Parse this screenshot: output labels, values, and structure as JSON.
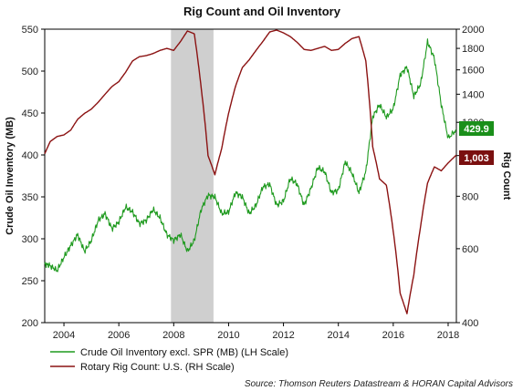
{
  "chart_data": {
    "type": "line",
    "title": "Rig Count and Oil Inventory",
    "ylabel_left": "Crude Oil Inventory (MB)",
    "ylabel_right": "Rig Count",
    "source": "Source: Thomson Reuters Datastream & HORAN Capital Advisors",
    "x_range": [
      2003.3,
      2018.3
    ],
    "x_ticks": [
      "2004",
      "2006",
      "2008",
      "2010",
      "2012",
      "2014",
      "2016",
      "2018"
    ],
    "y_left": {
      "min": 200,
      "max": 550,
      "ticks": [
        "200",
        "250",
        "300",
        "350",
        "400",
        "450",
        "500",
        "550"
      ]
    },
    "y_right": {
      "min": 400,
      "max": 2000,
      "scale": "log",
      "ticks": [
        "400",
        "600",
        "800",
        "1000",
        "1200",
        "1400",
        "1600",
        "1800",
        "2000"
      ]
    },
    "recession_shading": [
      2007.9,
      2009.45
    ],
    "grid": false,
    "legend_position": "bottom-left",
    "series": [
      {
        "name": "Crude Oil Inventory excl. SPR (MB) (LH Scale)",
        "axis": "left",
        "color": "#1f9a1f",
        "last_value_label": "429.9",
        "x": [
          2003.3,
          2003.5,
          2003.75,
          2004.0,
          2004.25,
          2004.5,
          2004.75,
          2005.0,
          2005.25,
          2005.5,
          2005.75,
          2006.0,
          2006.25,
          2006.5,
          2006.75,
          2007.0,
          2007.25,
          2007.5,
          2007.75,
          2008.0,
          2008.25,
          2008.5,
          2008.75,
          2009.0,
          2009.25,
          2009.5,
          2009.75,
          2010.0,
          2010.25,
          2010.5,
          2010.75,
          2011.0,
          2011.25,
          2011.5,
          2011.75,
          2012.0,
          2012.25,
          2012.5,
          2012.75,
          2013.0,
          2013.25,
          2013.5,
          2013.75,
          2014.0,
          2014.25,
          2014.5,
          2014.75,
          2015.0,
          2015.25,
          2015.5,
          2015.75,
          2016.0,
          2016.25,
          2016.5,
          2016.75,
          2017.0,
          2017.25,
          2017.5,
          2017.75,
          2018.0,
          2018.3
        ],
        "values": [
          270,
          268,
          262,
          278,
          292,
          305,
          285,
          298,
          322,
          330,
          312,
          320,
          338,
          332,
          318,
          322,
          335,
          325,
          305,
          298,
          305,
          285,
          298,
          335,
          352,
          350,
          330,
          332,
          355,
          350,
          330,
          340,
          362,
          365,
          340,
          345,
          372,
          365,
          340,
          360,
          385,
          380,
          355,
          358,
          392,
          378,
          355,
          380,
          445,
          460,
          445,
          455,
          495,
          505,
          470,
          485,
          535,
          515,
          460,
          420,
          430
        ]
      },
      {
        "name": "Rotary Rig Count: U.S. (RH Scale)",
        "axis": "right",
        "color": "#8b1212",
        "last_value_label": "1,003",
        "x": [
          2003.3,
          2003.5,
          2003.75,
          2004.0,
          2004.25,
          2004.5,
          2004.75,
          2005.0,
          2005.25,
          2005.5,
          2005.75,
          2006.0,
          2006.25,
          2006.5,
          2006.75,
          2007.0,
          2007.25,
          2007.5,
          2007.75,
          2008.0,
          2008.25,
          2008.5,
          2008.75,
          2009.0,
          2009.25,
          2009.5,
          2009.75,
          2010.0,
          2010.25,
          2010.5,
          2010.75,
          2011.0,
          2011.25,
          2011.5,
          2011.75,
          2012.0,
          2012.25,
          2012.5,
          2012.75,
          2013.0,
          2013.25,
          2013.5,
          2013.75,
          2014.0,
          2014.25,
          2014.5,
          2014.75,
          2015.0,
          2015.25,
          2015.5,
          2015.75,
          2016.0,
          2016.25,
          2016.5,
          2016.75,
          2017.0,
          2017.25,
          2017.5,
          2017.75,
          2018.0,
          2018.3
        ],
        "values": [
          1010,
          1080,
          1110,
          1120,
          1150,
          1220,
          1260,
          1290,
          1340,
          1400,
          1460,
          1500,
          1580,
          1680,
          1720,
          1730,
          1750,
          1780,
          1800,
          1780,
          1870,
          1980,
          1950,
          1450,
          1000,
          900,
          1040,
          1260,
          1460,
          1620,
          1690,
          1780,
          1870,
          1970,
          1990,
          1960,
          1920,
          1860,
          1790,
          1780,
          1800,
          1820,
          1780,
          1790,
          1850,
          1900,
          1920,
          1680,
          1050,
          880,
          850,
          660,
          470,
          420,
          520,
          680,
          860,
          940,
          920,
          960,
          1003
        ]
      }
    ]
  }
}
